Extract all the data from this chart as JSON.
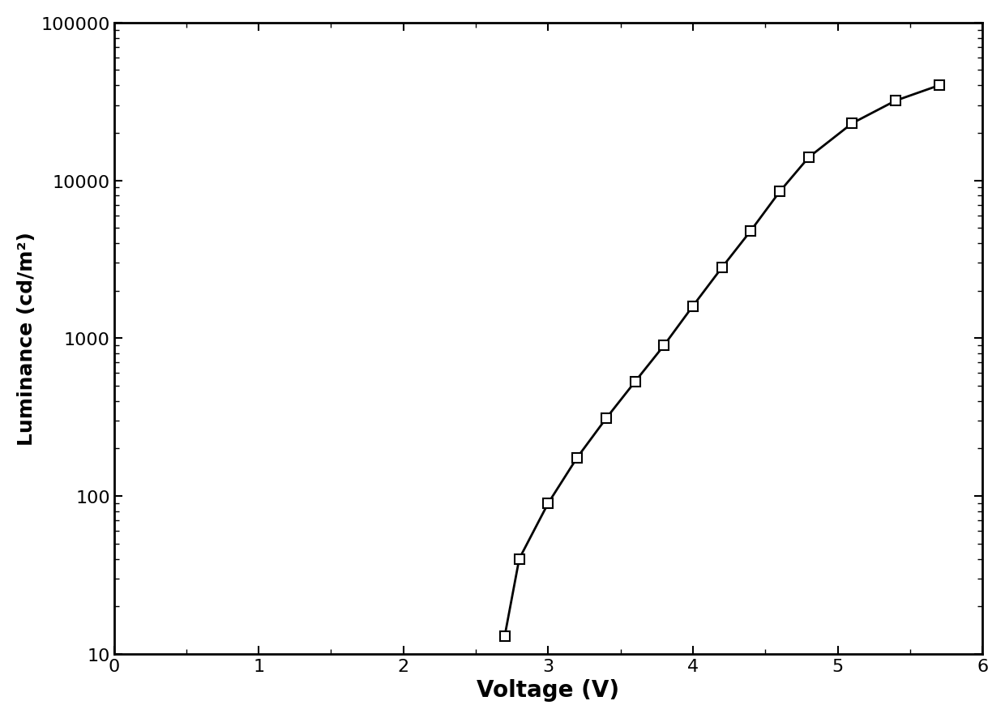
{
  "voltage": [
    2.7,
    2.8,
    3.0,
    3.2,
    3.4,
    3.6,
    3.8,
    4.0,
    4.2,
    4.4,
    4.6,
    4.8,
    5.1,
    5.4,
    5.7
  ],
  "luminance": [
    13,
    40,
    90,
    175,
    310,
    530,
    900,
    1600,
    2800,
    4800,
    8500,
    14000,
    23000,
    32000,
    40000
  ],
  "xlabel": "Voltage (V)",
  "ylabel": "Luminance (cd/m²)",
  "xlim": [
    0,
    6
  ],
  "ylim": [
    10,
    100000
  ],
  "xticks": [
    0,
    1,
    2,
    3,
    4,
    5,
    6
  ],
  "ytick_labels": [
    "10",
    "100",
    "1000",
    "10000",
    "100000"
  ],
  "ytick_values": [
    10,
    100,
    1000,
    10000,
    100000
  ],
  "line_color": "#000000",
  "marker": "s",
  "marker_facecolor": "#ffffff",
  "marker_edgecolor": "#000000",
  "marker_size": 8,
  "line_width": 2.0,
  "xlabel_fontsize": 20,
  "ylabel_fontsize": 18,
  "tick_fontsize": 16,
  "background_color": "#ffffff"
}
